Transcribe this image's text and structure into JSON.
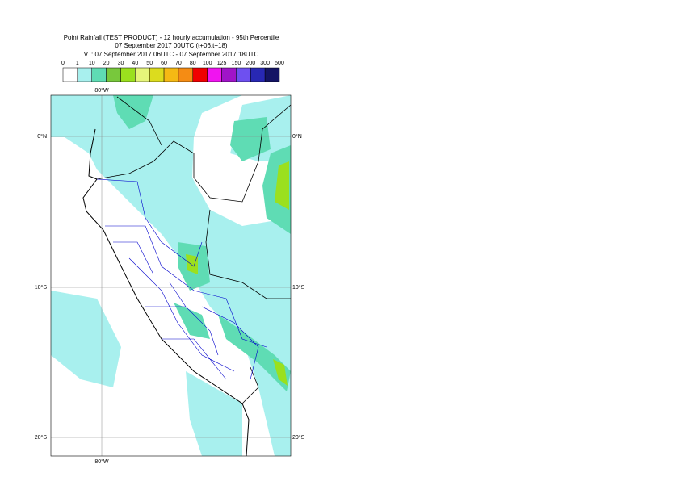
{
  "header": {
    "title": "Point Rainfall (TEST PRODUCT) - 12 hourly accumulation - 95th Percentile",
    "base_time": "07 September 2017 00UTC (t+06,t+18)",
    "valid_time": "VT: 07 September 2017 06UTC - 07 September 2017 18UTC"
  },
  "legend": {
    "thresholds": [
      0,
      1,
      10,
      20,
      30,
      40,
      50,
      60,
      70,
      80,
      100,
      125,
      150,
      200,
      300,
      500
    ],
    "colors": [
      "#ffffff",
      "#a8f0ee",
      "#5fdcb4",
      "#78c83c",
      "#9be01e",
      "#e6f57a",
      "#dcdc1e",
      "#f5b914",
      "#f58c14",
      "#f00000",
      "#f014f0",
      "#a014c8",
      "#6e50f0",
      "#2828b4",
      "#141464"
    ]
  },
  "map": {
    "lat_left": [
      "0°N",
      "10°S",
      "20°S"
    ],
    "lat_right": [
      "0°N",
      "10°S",
      "20°S"
    ],
    "lon_top": "80°W",
    "lon_bottom": "80°W"
  }
}
